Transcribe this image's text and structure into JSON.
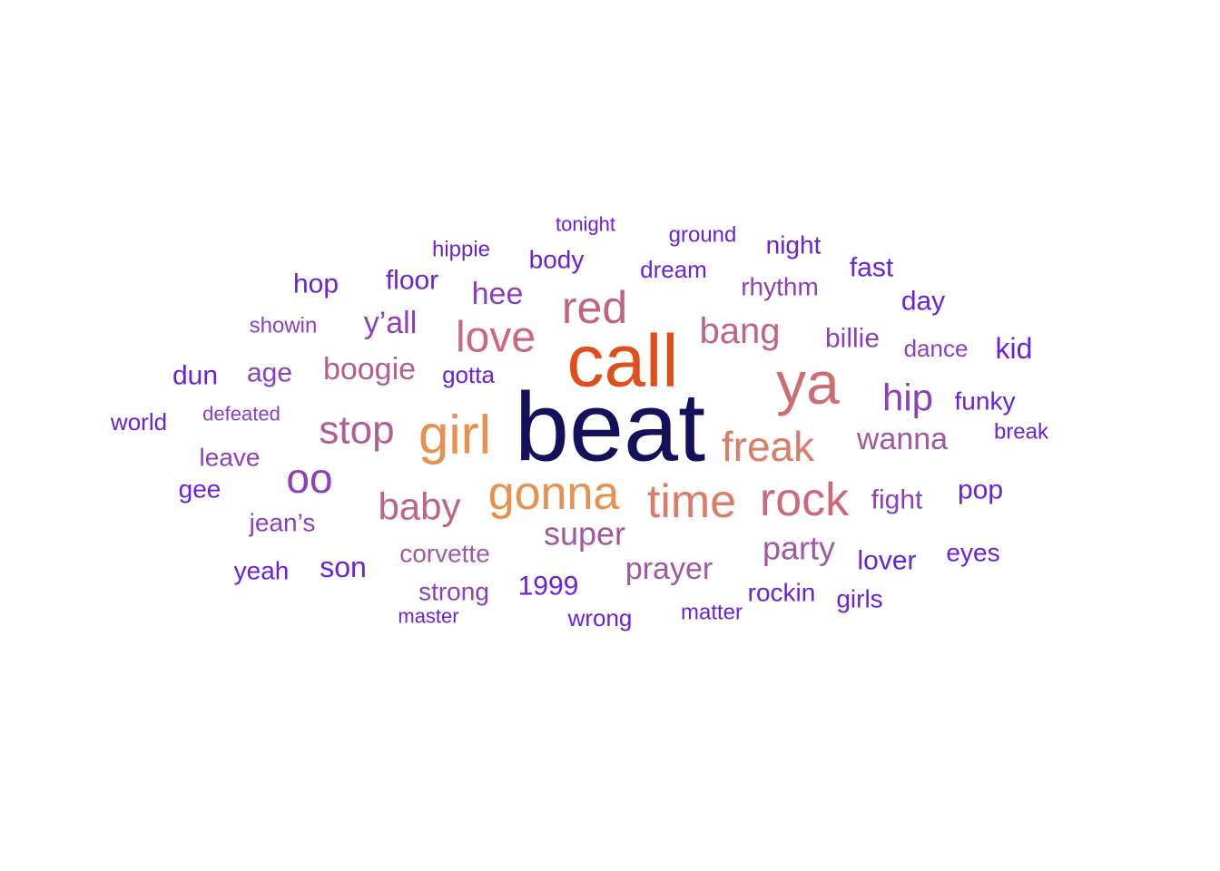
{
  "words": [
    {
      "text": "beat",
      "color": "#15105c"
    },
    {
      "text": "call",
      "color": "#e04e1b"
    },
    {
      "text": "ya",
      "color": "#cd6f72"
    },
    {
      "text": "girl",
      "color": "#e8904e"
    },
    {
      "text": "gonna",
      "color": "#e8904e"
    },
    {
      "text": "time",
      "color": "#d97d68"
    },
    {
      "text": "rock",
      "color": "#c9697a"
    },
    {
      "text": "freak",
      "color": "#d97d68"
    },
    {
      "text": "red",
      "color": "#c06484"
    },
    {
      "text": "love",
      "color": "#c9697a"
    },
    {
      "text": "stop",
      "color": "#b05e93"
    },
    {
      "text": "baby",
      "color": "#c06484"
    },
    {
      "text": "oo",
      "color": "#8b3fc0"
    },
    {
      "text": "hip",
      "color": "#8b3fc0"
    },
    {
      "text": "bang",
      "color": "#c06484"
    },
    {
      "text": "super",
      "color": "#a158a2"
    },
    {
      "text": "boogie",
      "color": "#b05e93"
    },
    {
      "text": "party",
      "color": "#a158a2"
    },
    {
      "text": "prayer",
      "color": "#a158a2"
    },
    {
      "text": "wanna",
      "color": "#a158a2"
    },
    {
      "text": "y’all",
      "color": "#8b3fc0"
    },
    {
      "text": "hee",
      "color": "#8b3fc0"
    },
    {
      "text": "corvette",
      "color": "#a158a2"
    },
    {
      "text": "kid",
      "color": "#6a22d8"
    },
    {
      "text": "hop",
      "color": "#6a22d8"
    },
    {
      "text": "son",
      "color": "#6a22d8"
    },
    {
      "text": "fight",
      "color": "#8b3fc0"
    },
    {
      "text": "pop",
      "color": "#6a22d8"
    },
    {
      "text": "dun",
      "color": "#6a22d8"
    },
    {
      "text": "age",
      "color": "#8b3fc0"
    },
    {
      "text": "floor",
      "color": "#6a22d8"
    },
    {
      "text": "lover",
      "color": "#6a22d8"
    },
    {
      "text": "billie",
      "color": "#8b3fc0"
    },
    {
      "text": "fast",
      "color": "#6a22d8"
    },
    {
      "text": "day",
      "color": "#6a22d8"
    },
    {
      "text": "body",
      "color": "#6a22d8"
    },
    {
      "text": "dream",
      "color": "#6a22d8"
    },
    {
      "text": "rhythm",
      "color": "#8b3fc0"
    },
    {
      "text": "night",
      "color": "#6a22d8"
    },
    {
      "text": "strong",
      "color": "#8b3fc0"
    },
    {
      "text": "1999",
      "color": "#6a22d8"
    },
    {
      "text": "rockin",
      "color": "#6a22d8"
    },
    {
      "text": "girls",
      "color": "#6a22d8"
    },
    {
      "text": "eyes",
      "color": "#6a22d8"
    },
    {
      "text": "funky",
      "color": "#6a22d8"
    },
    {
      "text": "dance",
      "color": "#8b3fc0"
    },
    {
      "text": "gee",
      "color": "#6a22d8"
    },
    {
      "text": "leave",
      "color": "#8b3fc0"
    },
    {
      "text": "jean’s",
      "color": "#8b3fc0"
    },
    {
      "text": "yeah",
      "color": "#6a22d8"
    },
    {
      "text": "gotta",
      "color": "#6a22d8"
    },
    {
      "text": "world",
      "color": "#6a22d8"
    },
    {
      "text": "showin",
      "color": "#8b3fc0"
    },
    {
      "text": "hippie",
      "color": "#6a22d8"
    },
    {
      "text": "tonight",
      "color": "#6a22d8"
    },
    {
      "text": "ground",
      "color": "#6a22d8"
    },
    {
      "text": "break",
      "color": "#6a22d8"
    },
    {
      "text": "wrong",
      "color": "#6a22d8"
    },
    {
      "text": "matter",
      "color": "#6a22d8"
    },
    {
      "text": "master",
      "color": "#6a22d8"
    },
    {
      "text": "defeated",
      "color": "#8b3fc0"
    }
  ]
}
